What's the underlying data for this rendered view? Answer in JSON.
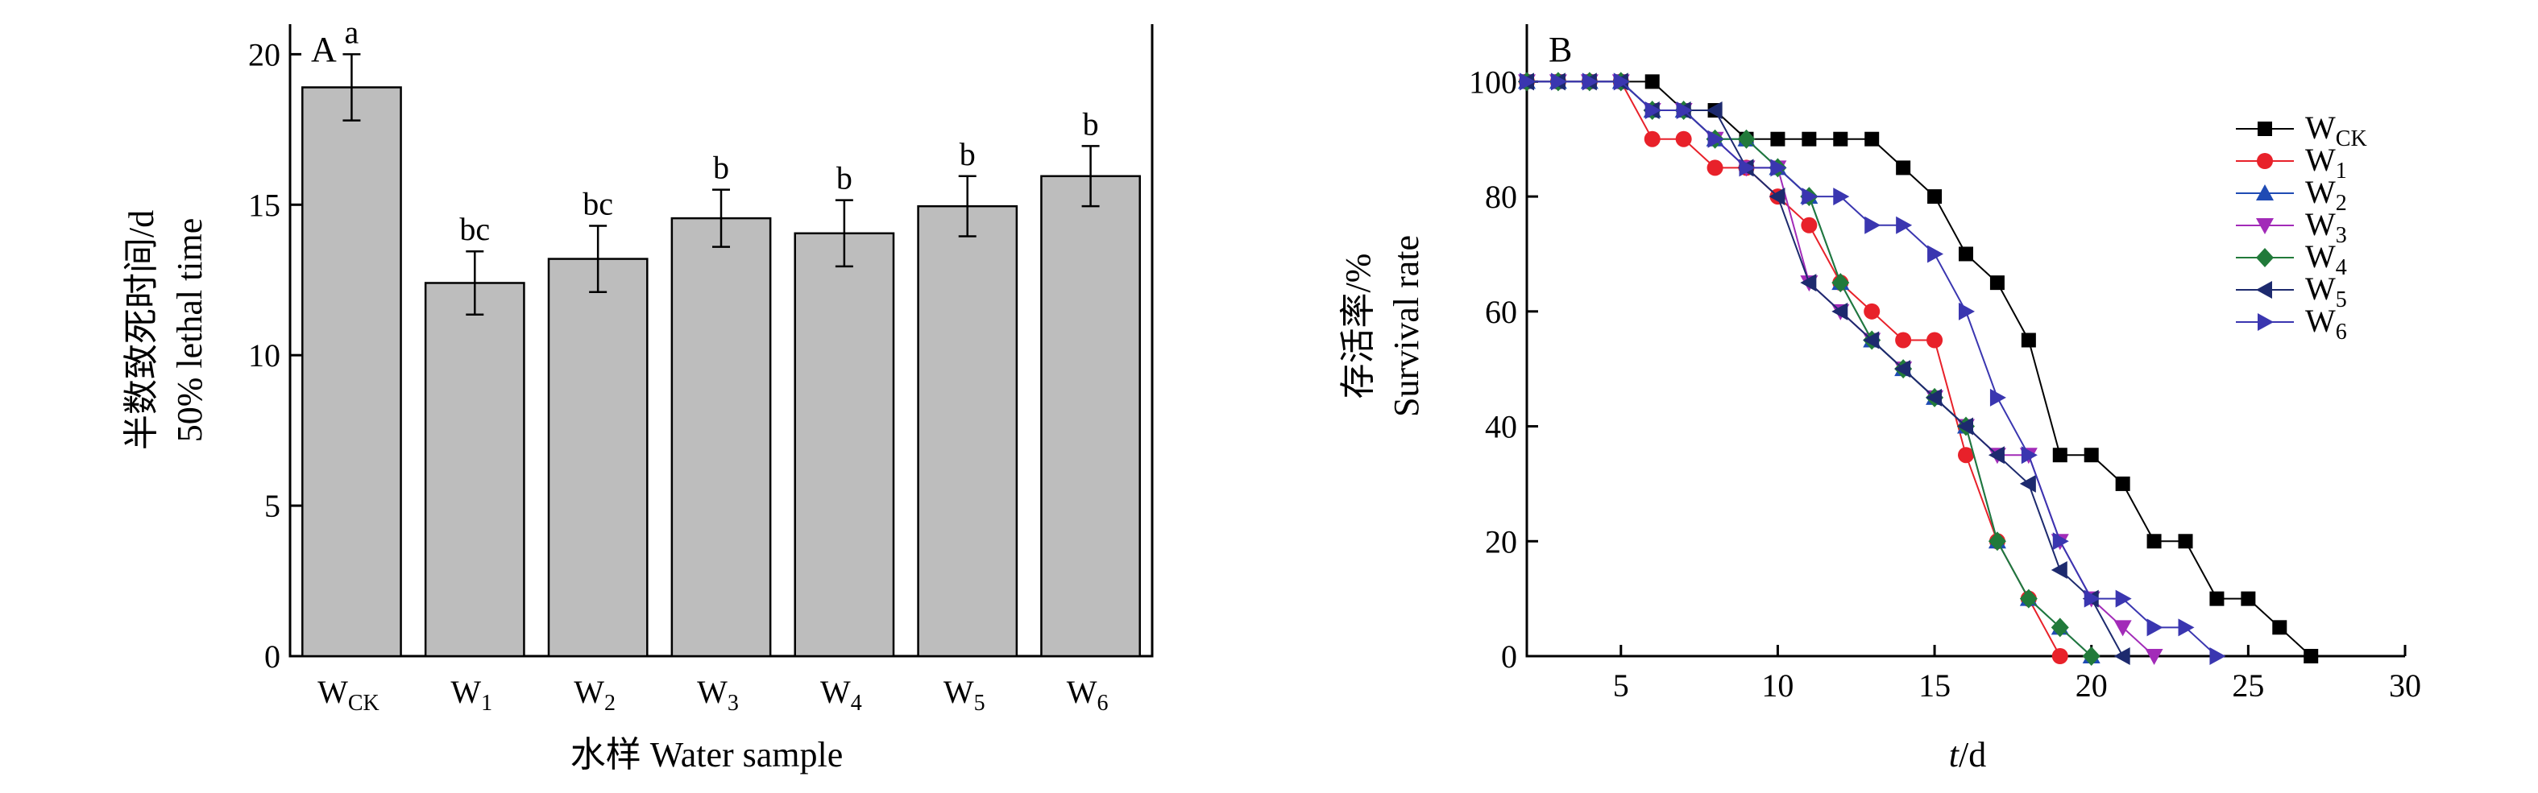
{
  "chart_data": [
    {
      "type": "bar",
      "panel_label": "A",
      "categories": [
        {
          "main": "W",
          "sub": "CK"
        },
        {
          "main": "W",
          "sub": "1"
        },
        {
          "main": "W",
          "sub": "2"
        },
        {
          "main": "W",
          "sub": "3"
        },
        {
          "main": "W",
          "sub": "4"
        },
        {
          "main": "W",
          "sub": "5"
        },
        {
          "main": "W",
          "sub": "6"
        }
      ],
      "values": [
        18.9,
        12.4,
        13.2,
        14.55,
        14.05,
        14.95,
        15.95
      ],
      "errors": [
        1.1,
        1.05,
        1.1,
        0.95,
        1.1,
        1.0,
        1.0
      ],
      "significance": [
        "a",
        "bc",
        "bc",
        "b",
        "b",
        "b",
        "b"
      ],
      "xlabel": "水样 Water sample",
      "ylabel_cn": "半数致死时间/d",
      "ylabel_en": "50% lethal time",
      "ylim": [
        0,
        21
      ],
      "yticks": [
        0,
        5,
        10,
        15,
        20
      ]
    },
    {
      "type": "line",
      "panel_label": "B",
      "xlabel_italic": "t",
      "xlabel_rest": "/d",
      "ylabel_cn": "存活率/%",
      "ylabel_en": "Survival rate",
      "xlim": [
        2,
        30
      ],
      "ylim": [
        0,
        110
      ],
      "xticks": [
        5,
        10,
        15,
        20,
        25,
        30
      ],
      "yticks": [
        0,
        20,
        40,
        60,
        80,
        100
      ],
      "legend_position": "top-right",
      "series": [
        {
          "main": "W",
          "sub": "CK",
          "color": "#000000",
          "marker": "square",
          "x": [
            2,
            3,
            4,
            5,
            6,
            7,
            8,
            9,
            10,
            11,
            12,
            13,
            14,
            15,
            16,
            17,
            18,
            19,
            20,
            21,
            22,
            23,
            24,
            25,
            26,
            27
          ],
          "y": [
            100,
            100,
            100,
            100,
            100,
            95,
            95,
            90,
            90,
            90,
            90,
            90,
            85,
            80,
            70,
            65,
            55,
            35,
            35,
            30,
            20,
            20,
            10,
            10,
            5,
            0
          ]
        },
        {
          "main": "W",
          "sub": "1",
          "color": "#e8212a",
          "marker": "circle",
          "x": [
            2,
            3,
            4,
            5,
            6,
            7,
            8,
            9,
            10,
            11,
            12,
            13,
            14,
            15,
            16,
            17,
            18,
            19
          ],
          "y": [
            100,
            100,
            100,
            100,
            90,
            90,
            85,
            85,
            80,
            75,
            65,
            60,
            55,
            55,
            35,
            20,
            10,
            0
          ]
        },
        {
          "main": "W",
          "sub": "2",
          "color": "#1f4bb4",
          "marker": "triangle-up",
          "x": [
            2,
            3,
            4,
            5,
            6,
            7,
            8,
            9,
            10,
            11,
            12,
            13,
            14,
            15,
            16,
            17,
            18,
            19,
            20
          ],
          "y": [
            100,
            100,
            100,
            100,
            95,
            95,
            90,
            90,
            85,
            80,
            65,
            55,
            50,
            45,
            40,
            20,
            10,
            5,
            0
          ]
        },
        {
          "main": "W",
          "sub": "3",
          "color": "#a22bb8",
          "marker": "triangle-down",
          "x": [
            2,
            3,
            4,
            5,
            6,
            7,
            8,
            9,
            10,
            11,
            12,
            13,
            14,
            15,
            16,
            17,
            18,
            19,
            20,
            21,
            22
          ],
          "y": [
            100,
            100,
            100,
            100,
            95,
            95,
            90,
            85,
            85,
            65,
            60,
            55,
            50,
            45,
            40,
            35,
            35,
            20,
            10,
            5,
            0
          ]
        },
        {
          "main": "W",
          "sub": "4",
          "color": "#217a3a",
          "marker": "diamond",
          "x": [
            2,
            3,
            4,
            5,
            6,
            7,
            8,
            9,
            10,
            11,
            12,
            13,
            14,
            15,
            16,
            17,
            18,
            19,
            20
          ],
          "y": [
            100,
            100,
            100,
            100,
            95,
            95,
            90,
            90,
            85,
            80,
            65,
            55,
            50,
            45,
            40,
            20,
            10,
            5,
            0
          ]
        },
        {
          "main": "W",
          "sub": "5",
          "color": "#1d2a6e",
          "marker": "triangle-left",
          "x": [
            2,
            3,
            4,
            5,
            6,
            7,
            8,
            9,
            10,
            11,
            12,
            13,
            14,
            15,
            16,
            17,
            18,
            19,
            20,
            21
          ],
          "y": [
            100,
            100,
            100,
            100,
            95,
            95,
            95,
            85,
            80,
            65,
            60,
            55,
            50,
            45,
            40,
            35,
            30,
            15,
            10,
            0
          ]
        },
        {
          "main": "W",
          "sub": "6",
          "color": "#3a36b0",
          "marker": "triangle-right",
          "x": [
            2,
            3,
            4,
            5,
            6,
            7,
            8,
            9,
            10,
            11,
            12,
            13,
            14,
            15,
            16,
            17,
            18,
            19,
            20,
            21,
            22,
            23,
            24
          ],
          "y": [
            100,
            100,
            100,
            100,
            95,
            95,
            90,
            85,
            85,
            80,
            80,
            75,
            75,
            70,
            60,
            45,
            35,
            20,
            10,
            10,
            5,
            5,
            0
          ]
        }
      ]
    }
  ]
}
